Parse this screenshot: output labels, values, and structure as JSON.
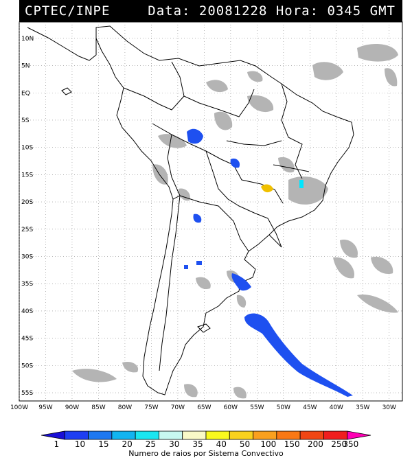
{
  "header": {
    "source": "CPTEC/INPE",
    "datetime": "Data: 20081228 Hora: 0345 GMT"
  },
  "map": {
    "lon_range": [
      -100,
      -27.5
    ],
    "lat_range": [
      -56.5,
      13
    ],
    "lat_ticks": [
      "10N",
      "5N",
      "EQ",
      "5S",
      "10S",
      "15S",
      "20S",
      "25S",
      "30S",
      "35S",
      "40S",
      "45S",
      "50S",
      "55S"
    ],
    "lon_ticks": [
      "100W",
      "95W",
      "90W",
      "85W",
      "80W",
      "75W",
      "70W",
      "65W",
      "60W",
      "55W",
      "50W",
      "45W",
      "40W",
      "35W",
      "30W"
    ],
    "grid": "dotted"
  },
  "colorbar": {
    "labels": [
      "1",
      "10",
      "15",
      "20",
      "25",
      "30",
      "35",
      "40",
      "50",
      "100",
      "150",
      "200",
      "250",
      "350"
    ],
    "colors": [
      "#1a0fd6",
      "#1e3ef2",
      "#1e78f0",
      "#12b4f0",
      "#1ae6f0",
      "#c8f8f0",
      "#fafac8",
      "#fafa1e",
      "#fad21e",
      "#faa01e",
      "#fa7814",
      "#f04614",
      "#f01e1e",
      "#ff00b4"
    ],
    "title": "Numero de raios por Sistema Convectivo"
  },
  "colors": {
    "cloud": "#b4b4b4",
    "land_outline": "#000000",
    "storm_blue": "#1e50f0",
    "storm_yellow": "#f0c000",
    "storm_cyan": "#00e6ff"
  }
}
